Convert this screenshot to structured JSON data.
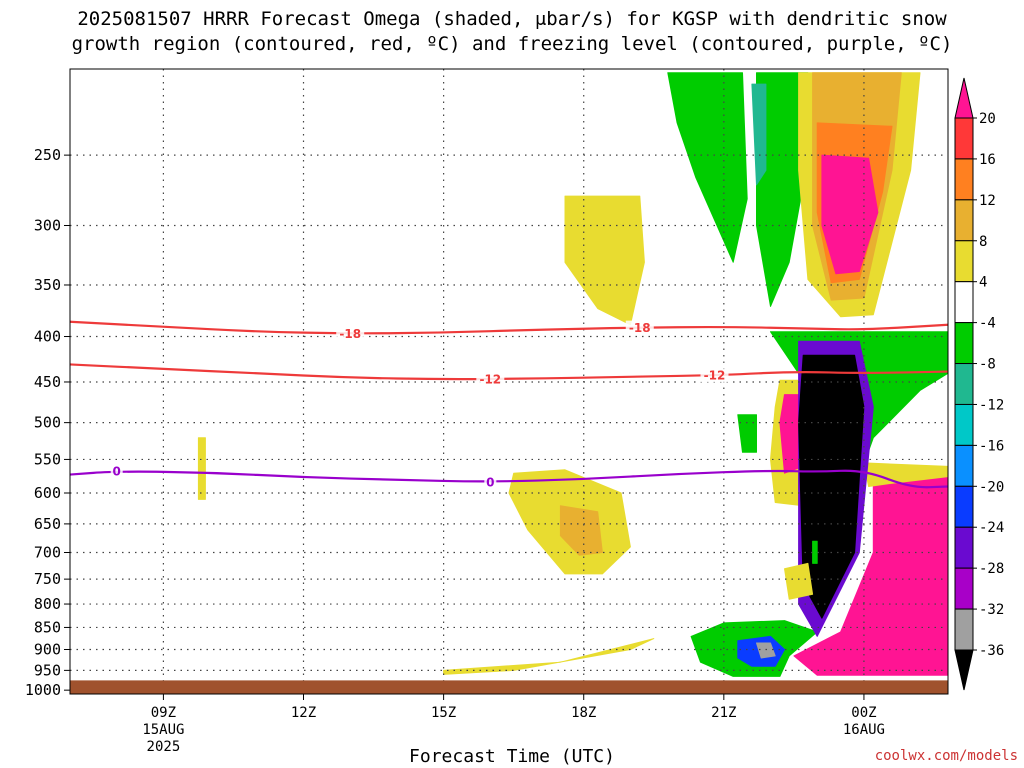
{
  "title_line1": "2025081507 HRRR Forecast Omega (shaded, μbar/s) for KGSP with dendritic snow",
  "title_line2": "growth region (contoured, red, ºC) and freezing level (contoured, purple, ºC)",
  "credit": "coolwx.com/models",
  "chart_data": {
    "type": "contour",
    "xlabel": "Forecast Time (UTC)",
    "x_range_hours_utc": [
      7,
      25.8
    ],
    "x_ticks": [
      {
        "hour": 9,
        "label": "09Z",
        "sub1": "15AUG",
        "sub2": "2025"
      },
      {
        "hour": 12,
        "label": "12Z",
        "sub1": "",
        "sub2": ""
      },
      {
        "hour": 15,
        "label": "15Z",
        "sub1": "",
        "sub2": ""
      },
      {
        "hour": 18,
        "label": "18Z",
        "sub1": "",
        "sub2": ""
      },
      {
        "hour": 21,
        "label": "21Z",
        "sub1": "",
        "sub2": ""
      },
      {
        "hour": 24,
        "label": "00Z",
        "sub1": "16AUG",
        "sub2": ""
      }
    ],
    "y_scale": "log",
    "y_range_mb": [
      200,
      1010
    ],
    "y_ticks": [
      250,
      300,
      350,
      400,
      450,
      500,
      550,
      600,
      650,
      700,
      750,
      800,
      850,
      900,
      950,
      1000
    ],
    "ground_mb": 975,
    "colorbar": {
      "labels": [
        "20",
        "16",
        "12",
        "8",
        "4",
        "-4",
        "-8",
        "-12",
        "-16",
        "-20",
        "-24",
        "-28",
        "-32",
        "-36"
      ],
      "colors": [
        "#ff1493",
        "#ff3838",
        "#ff8020",
        "#e8b030",
        "#e8dc30",
        "#ffffff",
        "#00cc00",
        "#20b890",
        "#00c8c8",
        "#0a90ff",
        "#0a3cff",
        "#6a0ad0",
        "#a800c8",
        "#a0a0a0",
        "#000000"
      ]
    },
    "contours": [
      {
        "name": "-18",
        "color": "#ee3a3a",
        "points": [
          [
            7,
            385
          ],
          [
            9,
            390
          ],
          [
            11,
            395
          ],
          [
            13,
            397
          ],
          [
            15,
            396
          ],
          [
            17,
            393
          ],
          [
            19,
            391
          ],
          [
            21,
            390
          ],
          [
            23,
            392
          ],
          [
            24,
            393
          ],
          [
            25.8,
            388
          ]
        ],
        "labels": [
          {
            "x": 13,
            "text": "-18"
          },
          {
            "x": 19.2,
            "text": "-18"
          }
        ]
      },
      {
        "name": "-12",
        "color": "#ee3a3a",
        "points": [
          [
            7,
            430
          ],
          [
            9,
            435
          ],
          [
            11,
            440
          ],
          [
            13,
            445
          ],
          [
            15,
            447
          ],
          [
            17,
            446
          ],
          [
            19,
            444
          ],
          [
            21,
            442
          ],
          [
            22.5,
            438
          ],
          [
            24,
            440
          ],
          [
            25.8,
            438
          ]
        ],
        "labels": [
          {
            "x": 16,
            "text": "-12"
          },
          {
            "x": 20.8,
            "text": "-12"
          }
        ]
      },
      {
        "name": "0",
        "color": "#9900cc",
        "points": [
          [
            7,
            572
          ],
          [
            8,
            567
          ],
          [
            10,
            569
          ],
          [
            12,
            576
          ],
          [
            14,
            580
          ],
          [
            16,
            583
          ],
          [
            18,
            579
          ],
          [
            20,
            571
          ],
          [
            22,
            566
          ],
          [
            23,
            568
          ],
          [
            24,
            565
          ],
          [
            25,
            592
          ],
          [
            25.8,
            590
          ]
        ],
        "labels": [
          {
            "x": 8.0,
            "text": "0"
          },
          {
            "x": 16.0,
            "text": "0"
          }
        ]
      }
    ],
    "regions": [
      {
        "color": "#00cc00",
        "points": [
          [
            19.8,
            202
          ],
          [
            21.4,
            202
          ],
          [
            21.5,
            280
          ],
          [
            21.2,
            330
          ],
          [
            20.4,
            265
          ],
          [
            20.0,
            230
          ]
        ]
      },
      {
        "color": "#00cc00",
        "points": [
          [
            21.7,
            202
          ],
          [
            22.8,
            202
          ],
          [
            22.7,
            270
          ],
          [
            22.4,
            330
          ],
          [
            22.0,
            370
          ],
          [
            21.7,
            300
          ]
        ]
      },
      {
        "color": "#20b890",
        "points": [
          [
            21.6,
            208
          ],
          [
            21.9,
            208
          ],
          [
            21.9,
            260
          ],
          [
            21.7,
            270
          ]
        ]
      },
      {
        "color": "#00cc00",
        "points": [
          [
            22.0,
            395
          ],
          [
            25.8,
            395
          ],
          [
            25.8,
            440
          ],
          [
            25.2,
            460
          ],
          [
            24.2,
            520
          ],
          [
            23.8,
            595
          ],
          [
            23.2,
            560
          ],
          [
            22.6,
            440
          ]
        ]
      },
      {
        "color": "#e8dc30",
        "points": [
          [
            22.6,
            202
          ],
          [
            25.2,
            202
          ],
          [
            25.0,
            260
          ],
          [
            24.2,
            378
          ],
          [
            23.5,
            380
          ],
          [
            22.8,
            345
          ],
          [
            22.6,
            260
          ]
        ]
      },
      {
        "color": "#e8b030",
        "points": [
          [
            22.9,
            202
          ],
          [
            24.8,
            202
          ],
          [
            24.6,
            260
          ],
          [
            24.0,
            362
          ],
          [
            23.3,
            364
          ],
          [
            22.9,
            300
          ]
        ]
      },
      {
        "color": "#ff8020",
        "points": [
          [
            23.0,
            230
          ],
          [
            24.6,
            232
          ],
          [
            24.4,
            275
          ],
          [
            23.9,
            345
          ],
          [
            23.3,
            348
          ],
          [
            23.0,
            290
          ]
        ]
      },
      {
        "color": "#ff1493",
        "points": [
          [
            23.1,
            250
          ],
          [
            24.1,
            252
          ],
          [
            24.3,
            290
          ],
          [
            23.9,
            338
          ],
          [
            23.4,
            340
          ],
          [
            23.1,
            300
          ]
        ]
      },
      {
        "color": "#e8dc30",
        "points": [
          [
            22.2,
            448
          ],
          [
            22.6,
            448
          ],
          [
            22.8,
            540
          ],
          [
            22.7,
            620
          ],
          [
            22.1,
            615
          ],
          [
            22.0,
            550
          ],
          [
            22.1,
            480
          ]
        ]
      },
      {
        "color": "#ff1493",
        "points": [
          [
            22.3,
            465
          ],
          [
            22.6,
            465
          ],
          [
            22.7,
            560
          ],
          [
            22.3,
            570
          ],
          [
            22.2,
            500
          ]
        ]
      },
      {
        "color": "#00cc00",
        "points": [
          [
            21.3,
            490
          ],
          [
            21.7,
            490
          ],
          [
            21.7,
            540
          ],
          [
            21.4,
            540
          ]
        ]
      },
      {
        "color": "#ff1493",
        "points": [
          [
            24.2,
            575
          ],
          [
            25.8,
            575
          ],
          [
            25.8,
            962
          ],
          [
            24.4,
            962
          ],
          [
            23.0,
            962
          ],
          [
            22.5,
            915
          ],
          [
            23.5,
            860
          ],
          [
            24.2,
            700
          ]
        ]
      },
      {
        "color": "#e8dc30",
        "points": [
          [
            24.0,
            555
          ],
          [
            25.8,
            560
          ],
          [
            25.8,
            575
          ],
          [
            24.6,
            585
          ],
          [
            24.1,
            590
          ]
        ]
      },
      {
        "color": "#00cc00",
        "points": [
          [
            20.3,
            870
          ],
          [
            21.0,
            840
          ],
          [
            22.3,
            835
          ],
          [
            23.0,
            860
          ],
          [
            22.4,
            915
          ],
          [
            22.2,
            965
          ],
          [
            21.2,
            965
          ],
          [
            20.5,
            930
          ]
        ]
      },
      {
        "color": "#0a3cff",
        "points": [
          [
            21.3,
            880
          ],
          [
            22.0,
            870
          ],
          [
            22.3,
            900
          ],
          [
            22.1,
            940
          ],
          [
            21.6,
            940
          ],
          [
            21.3,
            920
          ]
        ]
      },
      {
        "color": "#a0a0a0",
        "points": [
          [
            21.7,
            885
          ],
          [
            22.0,
            885
          ],
          [
            22.1,
            915
          ],
          [
            21.8,
            920
          ]
        ]
      },
      {
        "color": "#6a0ad0",
        "points": [
          [
            22.6,
            405
          ],
          [
            23.9,
            405
          ],
          [
            24.2,
            480
          ],
          [
            23.9,
            700
          ],
          [
            23.0,
            870
          ],
          [
            22.6,
            800
          ]
        ]
      },
      {
        "color": "#000000",
        "points": [
          [
            22.7,
            420
          ],
          [
            23.8,
            420
          ],
          [
            24.0,
            480
          ],
          [
            23.8,
            700
          ],
          [
            23.1,
            830
          ],
          [
            22.7,
            760
          ],
          [
            22.6,
            500
          ]
        ]
      },
      {
        "color": "#e8dc30",
        "points": [
          [
            17.6,
            278
          ],
          [
            19.2,
            278
          ],
          [
            19.3,
            330
          ],
          [
            19.0,
            388
          ],
          [
            18.3,
            372
          ],
          [
            17.6,
            330
          ]
        ]
      },
      {
        "color": "#e8dc30",
        "points": [
          [
            16.5,
            570
          ],
          [
            17.6,
            565
          ],
          [
            18.8,
            600
          ],
          [
            19.0,
            690
          ],
          [
            18.4,
            740
          ],
          [
            17.6,
            740
          ],
          [
            16.8,
            660
          ],
          [
            16.4,
            600
          ]
        ]
      },
      {
        "color": "#e8b030",
        "points": [
          [
            17.5,
            620
          ],
          [
            18.3,
            630
          ],
          [
            18.4,
            700
          ],
          [
            17.9,
            705
          ],
          [
            17.5,
            670
          ]
        ]
      },
      {
        "color": "#e8dc30",
        "points": [
          [
            15.0,
            950
          ],
          [
            17.5,
            930
          ],
          [
            19.5,
            875
          ],
          [
            19.0,
            900
          ],
          [
            16.5,
            950
          ],
          [
            15.0,
            960
          ]
        ]
      },
      {
        "color": "#e8dc30",
        "points": [
          [
            9.75,
            520
          ],
          [
            9.9,
            520
          ],
          [
            9.9,
            610
          ],
          [
            9.75,
            610
          ]
        ]
      },
      {
        "color": "#e8dc30",
        "points": [
          [
            22.3,
            730
          ],
          [
            22.8,
            720
          ],
          [
            22.9,
            780
          ],
          [
            22.4,
            790
          ]
        ]
      },
      {
        "color": "#00cc00",
        "points": [
          [
            22.9,
            680
          ],
          [
            23.0,
            680
          ],
          [
            23.0,
            720
          ],
          [
            22.9,
            720
          ]
        ]
      }
    ]
  }
}
